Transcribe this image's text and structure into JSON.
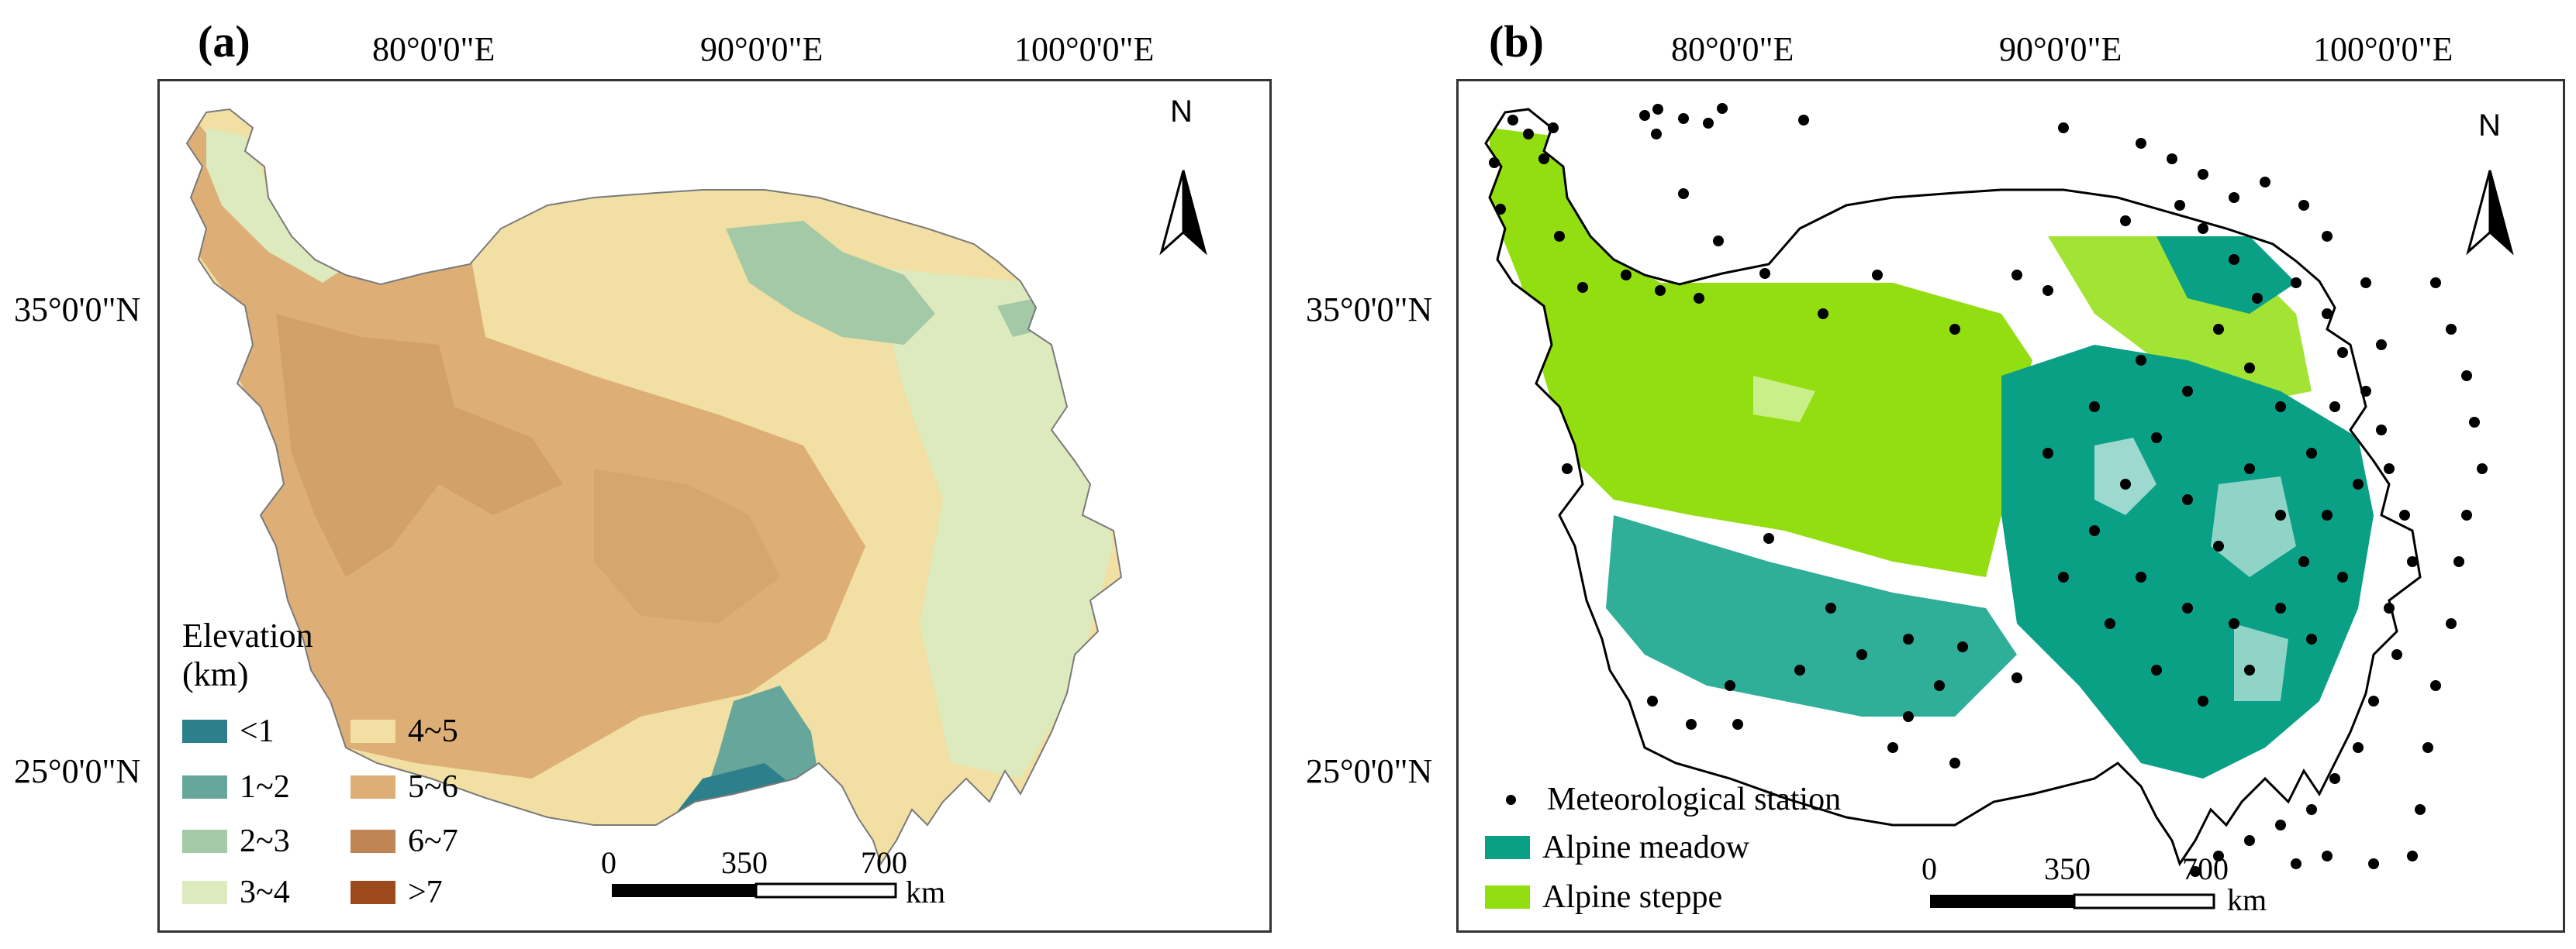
{
  "panel_a": {
    "label": "(a)",
    "longitude_labels": [
      "80°0'0\"E",
      "90°0'0\"E",
      "100°0'0\"E"
    ],
    "latitude_labels": [
      "35°0'0\"N",
      "25°0'0\"N"
    ],
    "north_label": "N",
    "legend": {
      "title_line1": "Elevation",
      "title_line2": "(km)",
      "items": [
        {
          "label": "<1",
          "color": "#2e7f8c"
        },
        {
          "label": "1~2",
          "color": "#67a79b"
        },
        {
          "label": "2~3",
          "color": "#a4c9a6"
        },
        {
          "label": "3~4",
          "color": "#dceabd"
        },
        {
          "label": "4~5",
          "color": "#f1dfa3"
        },
        {
          "label": "5~6",
          "color": "#ddaf76"
        },
        {
          "label": "6~7",
          "color": "#bf8453"
        },
        {
          "label": ">7",
          "color": "#9c4a1c"
        }
      ]
    },
    "scale_bar": {
      "ticks": [
        "0",
        "350",
        "700"
      ],
      "unit": "km"
    }
  },
  "panel_b": {
    "label": "(b)",
    "longitude_labels": [
      "80°0'0\"E",
      "90°0'0\"E",
      "100°0'0\"E"
    ],
    "latitude_labels": [
      "35°0'0\"N",
      "25°0'0\"N"
    ],
    "north_label": "N",
    "legend": {
      "items": [
        {
          "label": "Meteorological station",
          "color": "#000000",
          "symbol": "dot"
        },
        {
          "label": "Alpine meadow",
          "color": "#0aa086",
          "symbol": "patch"
        },
        {
          "label": "Alpine steppe",
          "color": "#93de10",
          "symbol": "patch"
        }
      ]
    },
    "scale_bar": {
      "ticks": [
        "0",
        "350",
        "700"
      ],
      "unit": "km"
    }
  }
}
